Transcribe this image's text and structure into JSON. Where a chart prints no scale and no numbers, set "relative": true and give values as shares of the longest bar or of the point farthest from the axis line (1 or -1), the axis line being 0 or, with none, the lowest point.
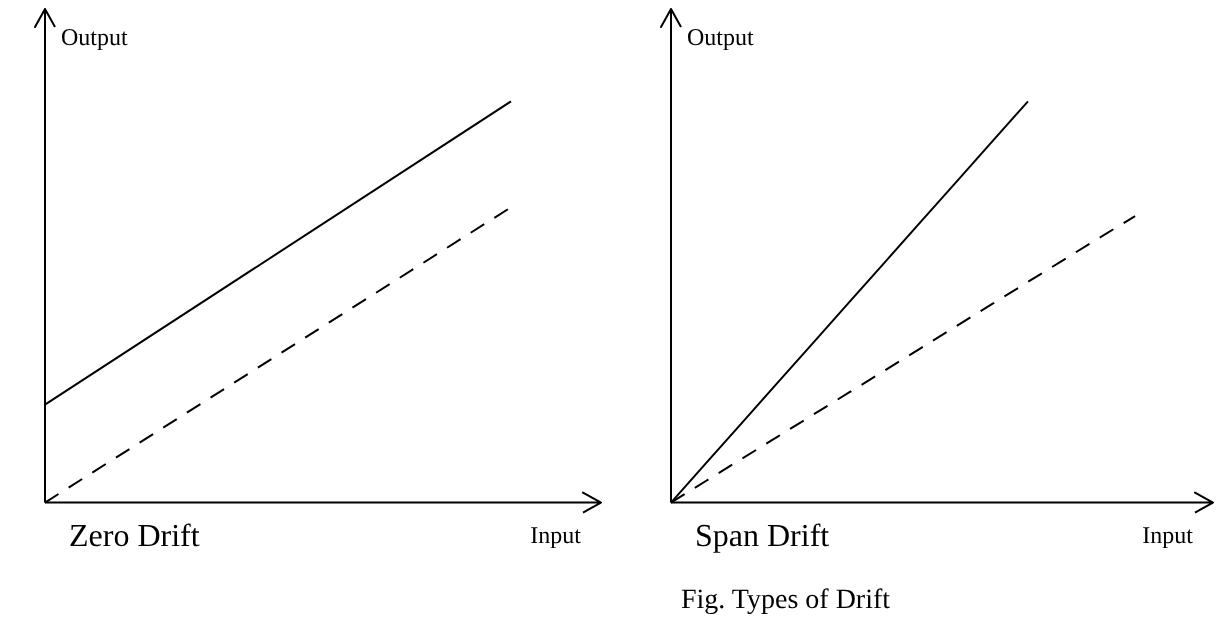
{
  "chart_data": [
    {
      "type": "line",
      "relative": true,
      "title": "Zero Drift",
      "xlabel": "Input",
      "ylabel": "Output",
      "categories": [
        null,
        null
      ],
      "series": [
        {
          "color": "#000000",
          "line_style": "solid",
          "values": [
            0.244,
            1
          ]
        },
        {
          "color": "#000000",
          "line_style": "dashed",
          "values": [
            0,
            0.736
          ]
        }
      ]
    },
    {
      "type": "line",
      "relative": true,
      "title": "Span Drift",
      "xlabel": "Input",
      "ylabel": "Output",
      "annotations": [
        "Fig. Types of Drift"
      ],
      "categories": [
        null,
        null,
        null,
        null,
        null,
        null,
        null,
        null,
        null,
        null,
        null,
        null,
        null,
        null
      ],
      "series": [
        {
          "color": "#000000",
          "line_style": "solid",
          "values": [
            0,
            0.1,
            0.2,
            0.3,
            0.4,
            0.5,
            0.6,
            0.7,
            0.8,
            0.9,
            1,
            null,
            null,
            null
          ]
        },
        {
          "color": "#000000",
          "line_style": "dashed",
          "values": [
            0,
            0.055,
            0.11,
            0.165,
            0.22,
            0.275,
            0.33,
            0.385,
            0.44,
            0.495,
            0.55,
            0.605,
            0.66,
            0.714
          ]
        }
      ]
    }
  ]
}
